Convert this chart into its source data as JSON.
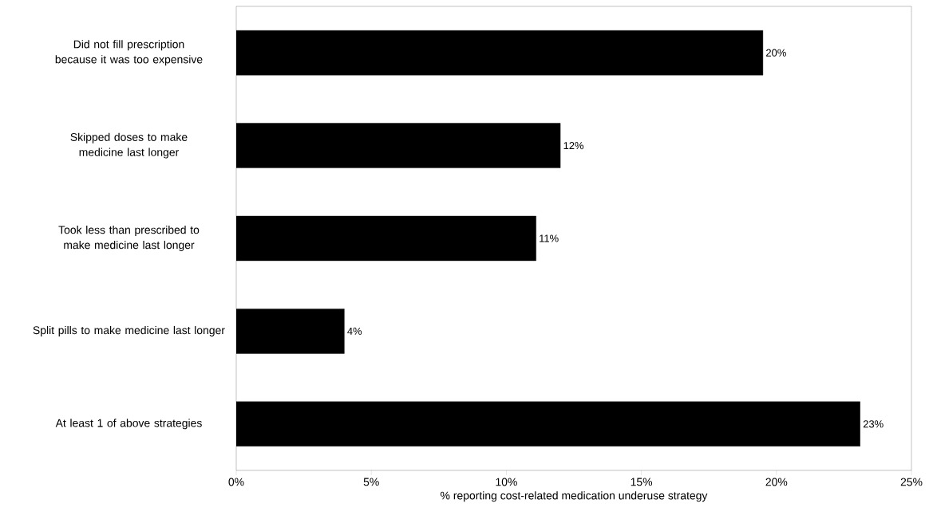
{
  "chart_data": {
    "type": "bar",
    "orientation": "horizontal",
    "xlabel": "% reporting cost-related medication underuse  strategy",
    "categories": [
      "Did not fill prescription because it was too expensive",
      "Skipped doses to make medicine last longer",
      "Took less than prescribed to make medicine last longer",
      "Split pills to make medicine last longer",
      "At least 1 of above strategies"
    ],
    "values": [
      19.5,
      12,
      11.1,
      4,
      23.1
    ],
    "value_labels": [
      "20%",
      "12%",
      "11%",
      "4%",
      "23%"
    ],
    "color": "#000000",
    "xlim": [
      0,
      25
    ],
    "xticks": [
      {
        "value": 0,
        "label": "0%"
      },
      {
        "value": 5,
        "label": "5%"
      },
      {
        "value": 10,
        "label": "10%"
      },
      {
        "value": 15,
        "label": "15%"
      },
      {
        "value": 20,
        "label": "20%"
      },
      {
        "value": 25,
        "label": "25%"
      }
    ],
    "grid": false
  }
}
